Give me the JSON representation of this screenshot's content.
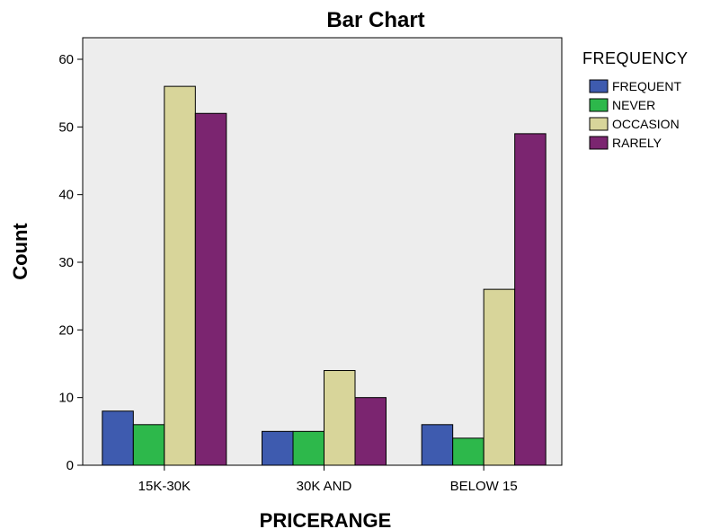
{
  "chart_data": {
    "type": "bar",
    "title": "Bar Chart",
    "xlabel": "PRICERANGE",
    "ylabel": "Count",
    "categories": [
      "15K-30K",
      "30K AND",
      "BELOW 15"
    ],
    "series": [
      {
        "name": "FREQUENT",
        "color": "#3E5BAF",
        "values": [
          8,
          5,
          6
        ]
      },
      {
        "name": "NEVER",
        "color": "#2DB84B",
        "values": [
          6,
          5,
          4
        ]
      },
      {
        "name": "OCCASION",
        "color": "#D8D59A",
        "values": [
          56,
          14,
          26
        ]
      },
      {
        "name": "RARELY",
        "color": "#7B2570",
        "values": [
          52,
          10,
          49
        ]
      }
    ],
    "ylim": [
      0,
      60
    ],
    "yticks": [
      0,
      10,
      20,
      30,
      40,
      50,
      60
    ],
    "legend": {
      "title": "FREQUENCY",
      "position": "right"
    },
    "plot_background": "#EDEDED",
    "grid": false
  }
}
